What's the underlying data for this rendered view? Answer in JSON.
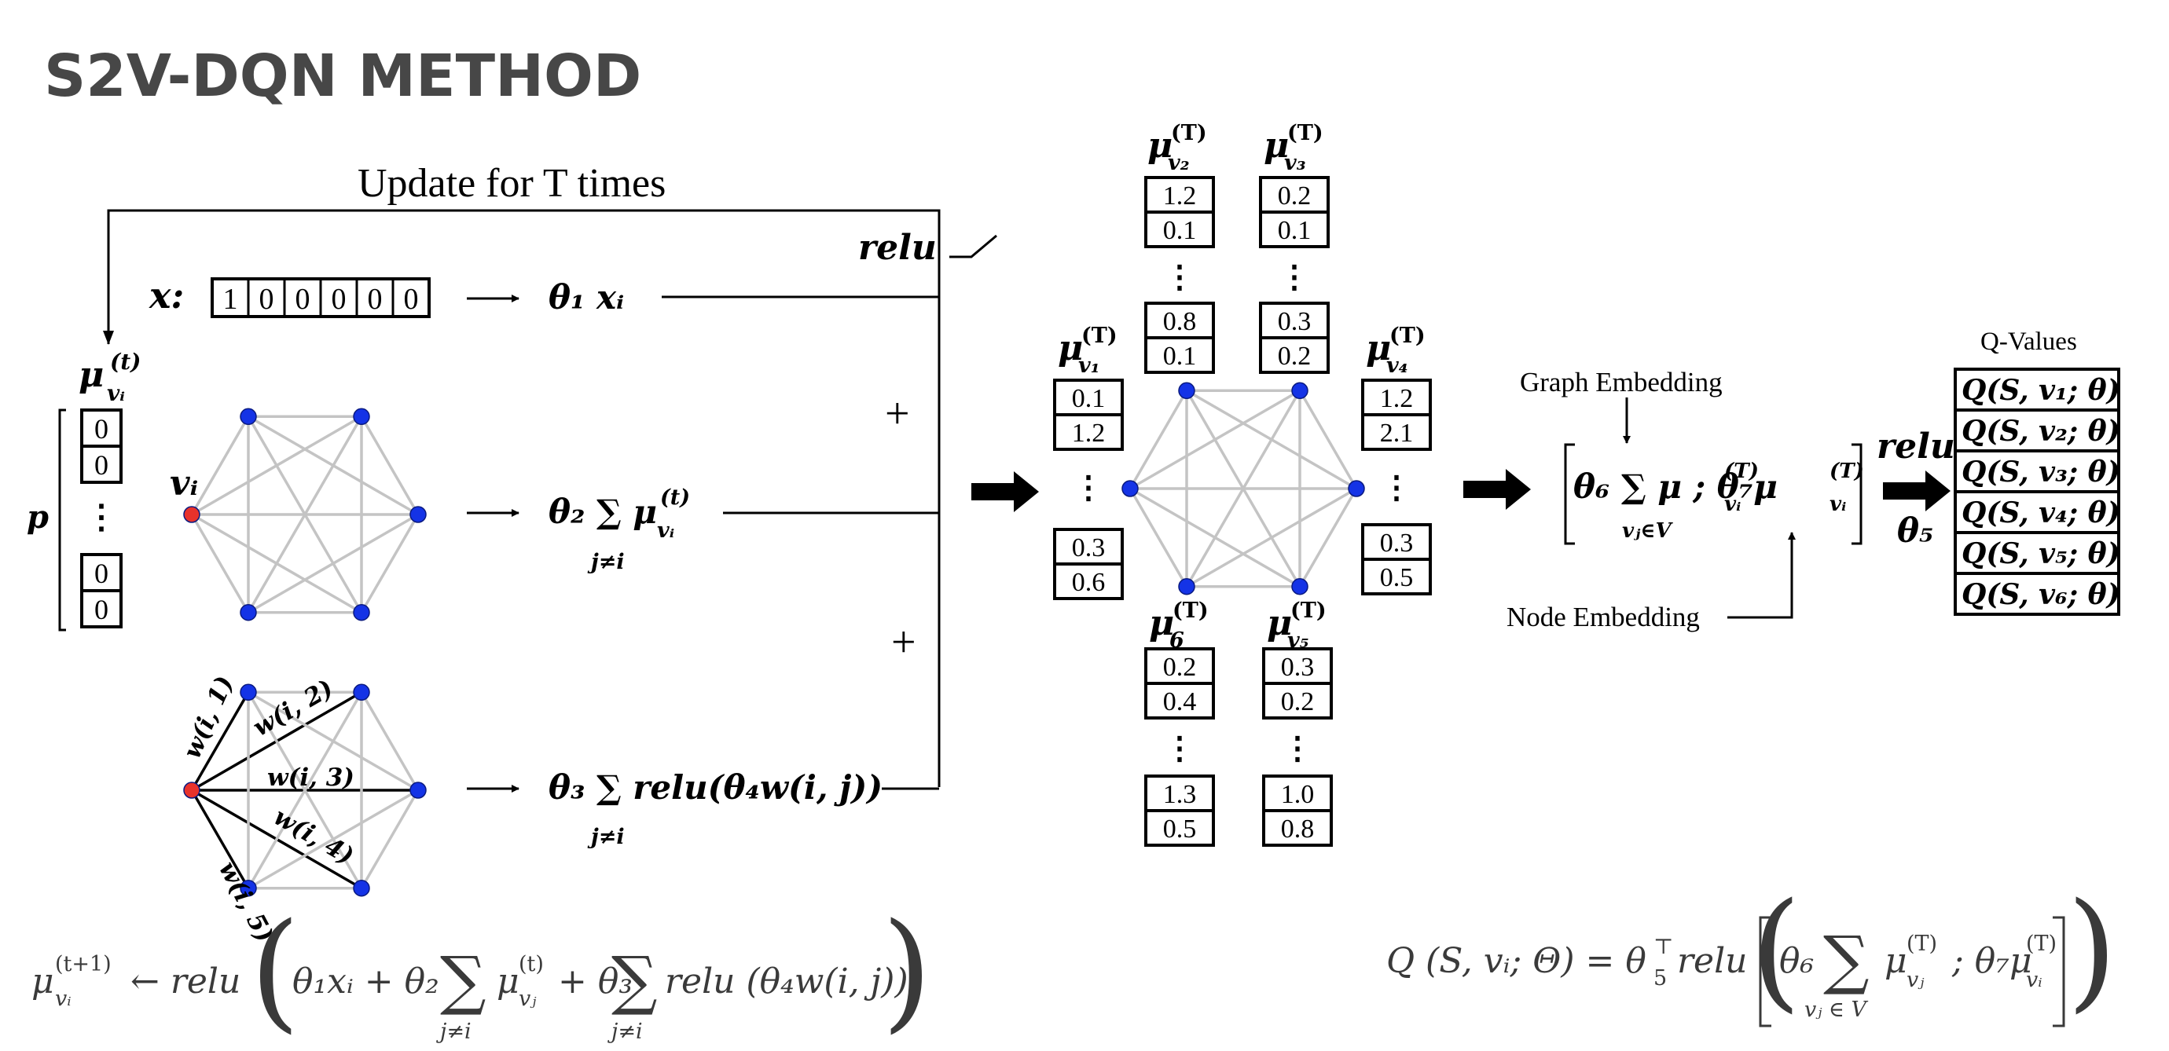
{
  "title": "S2V-DQN METHOD",
  "update_label": "Update for T times",
  "relu_label": "relu",
  "x_label": "x:",
  "x_vector": [
    "1",
    "0",
    "0",
    "0",
    "0",
    "0"
  ],
  "theta1_term": "θ₁ xᵢ",
  "theta2_term": "θ₂ ∑ μ",
  "theta3_term": "θ₃ ∑ relu(θ₄w(i, j))",
  "sum_sub": "j≠i",
  "plus": "+",
  "mu_t_label": "μ",
  "mu_t_sup": "(t)",
  "mu_t_sub": "vᵢ",
  "p_label": "p",
  "vi_label": "vᵢ",
  "init_vector": [
    "0",
    "0",
    "⋮",
    "0",
    "0"
  ],
  "weight_labels": [
    "w(i, 1)",
    "w(i, 2)",
    "w(i, 3)",
    "w(i, 4)",
    "w(i, 5)"
  ],
  "embedding_sup": "(T)",
  "node_embeddings": [
    {
      "sub": "v₁",
      "top": [
        "0.1",
        "1.2"
      ],
      "bottom": [
        "0.3",
        "0.6"
      ]
    },
    {
      "sub": "v₂",
      "top": [
        "1.2",
        "0.1"
      ],
      "bottom": [
        "0.8",
        "0.1"
      ]
    },
    {
      "sub": "v₃",
      "top": [
        "0.2",
        "0.1"
      ],
      "bottom": [
        "0.3",
        "0.2"
      ]
    },
    {
      "sub": "v₄",
      "top": [
        "1.2",
        "2.1"
      ],
      "bottom": [
        "0.3",
        "0.5"
      ]
    },
    {
      "sub": "v₅",
      "top": [
        "0.3",
        "0.2"
      ],
      "bottom": [
        "1.0",
        "0.8"
      ]
    },
    {
      "sub": "6",
      "top": [
        "0.2",
        "0.4"
      ],
      "bottom": [
        "1.3",
        "0.5"
      ]
    }
  ],
  "graph_embedding_label": "Graph Embedding",
  "node_embedding_label": "Node Embedding",
  "combo_expr": "θ₆ ∑ μ ; θ₇μ",
  "combo_sum_sub": "vⱼ∈V",
  "theta5_label": "θ₅",
  "qvalues_label": "Q-Values",
  "qvalues": [
    "Q(S, v₁; θ)",
    "Q(S, v₂; θ)",
    "Q(S, v₃; θ)",
    "Q(S, v₄; θ)",
    "Q(S, v₅; θ)",
    "Q(S, v₆; θ)"
  ],
  "update_formula": {
    "lhs": "μ",
    "lhs_sup": "(t+1)",
    "lhs_sub": "vᵢ",
    "arrow": "← relu",
    "term1": "θ₁xᵢ + θ₂",
    "mu": "μ",
    "mu_sup": "(t)",
    "mu_sub": "vⱼ",
    "term3": "+ θ₃",
    "term4": "relu (θ₄w(i, j))",
    "sum_sub": "j≠i"
  },
  "q_formula": {
    "lhs": "Q (S, vᵢ; Θ) = θ",
    "lhs_sub": "5",
    "lhs_sup": "⊤",
    "relu": "relu",
    "theta6": "θ₆",
    "mu": "μ",
    "mu_sup": "(T)",
    "mu_sub_j": "vⱼ",
    "theta7": "; θ₇μ",
    "mu_sub_i": "vᵢ",
    "sum_sub": "vⱼ ∈ V"
  }
}
